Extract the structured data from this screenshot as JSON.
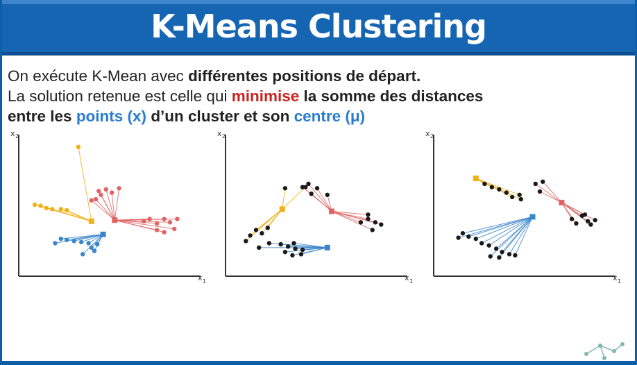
{
  "title": "K-Means Clustering",
  "text": {
    "line1_normal": "On exécute K-Mean avec ",
    "line1_bold": "différentes positions de départ.",
    "line2_normal": "La solution retenue est celle qui ",
    "line2_red": "minimise",
    "line2_bold": " la somme des distances",
    "line3_bold_a": "entre les ",
    "line3_blue_a": "points (x)",
    "line3_bold_b": " d’un cluster et son ",
    "line3_blue_b": "centre (μ)"
  },
  "axes": {
    "x_label": "x",
    "x_sub": "1",
    "y_label": "x",
    "y_sub": "2"
  },
  "colors": {
    "yellow": "#f2b015",
    "red": "#e06464",
    "blue": "#3a86cc",
    "black": "#1a1a1a",
    "title_bar": "#1565b3"
  },
  "chart_data": [
    {
      "type": "scatter",
      "clusters": [
        {
          "color": "yellow",
          "center": [
            100,
            100
          ],
          "points": [
            [
              82,
              235
            ],
            [
              22,
              130
            ],
            [
              30,
              128
            ],
            [
              38,
              124
            ],
            [
              46,
              122
            ],
            [
              58,
              122
            ],
            [
              66,
              120
            ]
          ]
        },
        {
          "color": "red",
          "center": [
            132,
            102
          ],
          "points": [
            [
              110,
              155
            ],
            [
              113,
              148
            ],
            [
              120,
              158
            ],
            [
              128,
              152
            ],
            [
              138,
              160
            ],
            [
              100,
              138
            ],
            [
              106,
              140
            ],
            [
              172,
              100
            ],
            [
              180,
              104
            ],
            [
              190,
              96
            ],
            [
              200,
              104
            ],
            [
              208,
              98
            ],
            [
              218,
              104
            ],
            [
              214,
              86
            ],
            [
              200,
              80
            ],
            [
              190,
              84
            ]
          ]
        },
        {
          "color": "blue",
          "center": [
            116,
            76
          ],
          "points": [
            [
              50,
              60
            ],
            [
              58,
              68
            ],
            [
              66,
              66
            ],
            [
              76,
              64
            ],
            [
              86,
              62
            ],
            [
              96,
              60
            ],
            [
              88,
              40
            ],
            [
              104,
              46
            ],
            [
              100,
              52
            ],
            [
              108,
              58
            ]
          ]
        }
      ]
    },
    {
      "type": "scatter",
      "clusters": [
        {
          "color": "yellow",
          "center": [
            78,
            122
          ],
          "points": [
            [
              82,
              160
            ],
            [
              110,
              162
            ],
            [
              28,
              64
            ],
            [
              34,
              74
            ],
            [
              42,
              84
            ],
            [
              50,
              78
            ],
            [
              58,
              88
            ]
          ]
        },
        {
          "color": "red",
          "center": [
            146,
            118
          ],
          "points": [
            [
              106,
              162
            ],
            [
              118,
              150
            ],
            [
              126,
              160
            ],
            [
              140,
              148
            ],
            [
              114,
              168
            ],
            [
              186,
              98
            ],
            [
              196,
              104
            ],
            [
              206,
              98
            ],
            [
              214,
              94
            ],
            [
              196,
              112
            ],
            [
              202,
              84
            ]
          ]
        },
        {
          "color": "blue",
          "center": [
            140,
            52
          ],
          "points": [
            [
              46,
              52
            ],
            [
              60,
              60
            ],
            [
              76,
              58
            ],
            [
              86,
              54
            ],
            [
              96,
              50
            ],
            [
              106,
              48
            ],
            [
              104,
              40
            ],
            [
              92,
              38
            ],
            [
              82,
              44
            ],
            [
              94,
              60
            ]
          ]
        }
      ]
    },
    {
      "type": "scatter",
      "clusters": [
        {
          "color": "yellow",
          "center": [
            58,
            178
          ],
          "points": [
            [
              70,
              168
            ],
            [
              80,
              162
            ],
            [
              90,
              158
            ],
            [
              100,
              152
            ],
            [
              108,
              144
            ],
            [
              118,
              148
            ],
            [
              120,
              140
            ]
          ]
        },
        {
          "color": "red",
          "center": [
            176,
            134
          ],
          "points": [
            [
              140,
              168
            ],
            [
              146,
              154
            ],
            [
              150,
              172
            ],
            [
              190,
              104
            ],
            [
              196,
              96
            ],
            [
              204,
              110
            ],
            [
              212,
              100
            ],
            [
              208,
              112
            ],
            [
              216,
              94
            ],
            [
              222,
              102
            ]
          ]
        },
        {
          "color": "blue",
          "center": [
            136,
            108
          ],
          "points": [
            [
              34,
              70
            ],
            [
              40,
              78
            ],
            [
              48,
              72
            ],
            [
              58,
              68
            ],
            [
              66,
              60
            ],
            [
              76,
              56
            ],
            [
              86,
              50
            ],
            [
              94,
              44
            ],
            [
              104,
              40
            ],
            [
              112,
              38
            ],
            [
              78,
              36
            ],
            [
              90,
              34
            ]
          ]
        }
      ]
    }
  ]
}
